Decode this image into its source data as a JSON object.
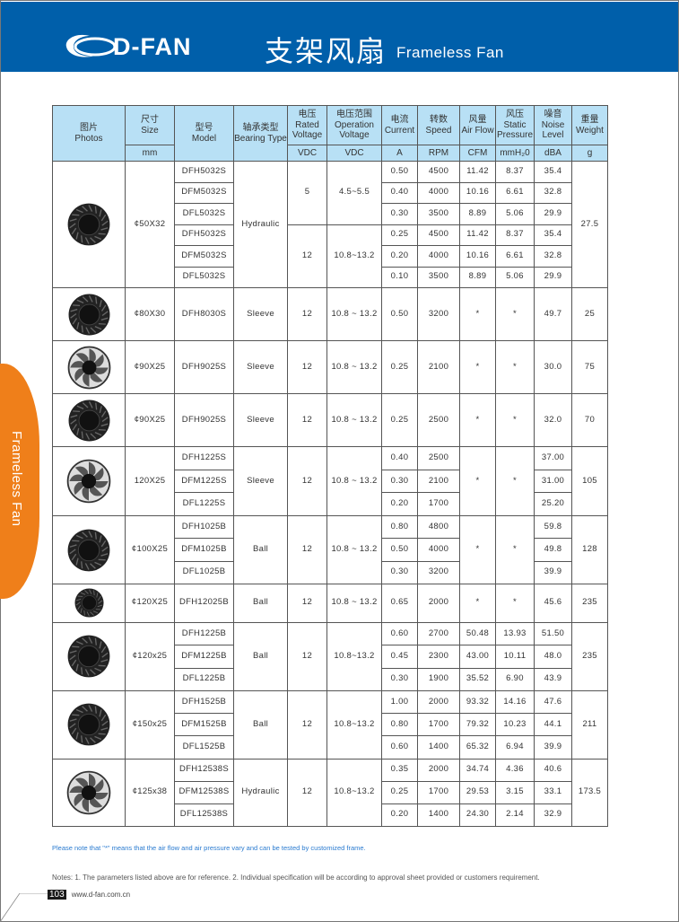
{
  "header": {
    "logo_text": "D-FAN",
    "title_cn": "支架风扇",
    "title_en": "Frameless Fan",
    "bar_color": "#005faa"
  },
  "side_tab": {
    "label": "Frameless Fan",
    "color": "#ef7f1a"
  },
  "table": {
    "headers": [
      {
        "cn": "图片",
        "en": "Photos",
        "unit": ""
      },
      {
        "cn": "尺寸",
        "en": "Size",
        "unit": "mm"
      },
      {
        "cn": "型号",
        "en": "Model",
        "unit": ""
      },
      {
        "cn": "轴承类型",
        "en": "Bearing Type",
        "unit": ""
      },
      {
        "cn": "电压",
        "en": "Rated Voltage",
        "unit": "VDC"
      },
      {
        "cn": "电压范围",
        "en": "Operation Voltage",
        "unit": "VDC"
      },
      {
        "cn": "电流",
        "en": "Current",
        "unit": "A"
      },
      {
        "cn": "转数",
        "en": "Speed",
        "unit": "RPM"
      },
      {
        "cn": "风量",
        "en": "Air Flow",
        "unit": "CFM"
      },
      {
        "cn": "风压",
        "en": "Static Pressure",
        "unit": "mmH₂0"
      },
      {
        "cn": "噪音",
        "en": "Noise Level",
        "unit": "dBA"
      },
      {
        "cn": "重量",
        "en": "Weight",
        "unit": "g"
      }
    ],
    "groups": [
      {
        "photo_icon": "blower-fan-icon",
        "size": "¢50X32",
        "bearing": "Hydraulic",
        "weight": "27.5",
        "rows": [
          {
            "model": "DFH5032S",
            "voltage": "5",
            "range": "4.5~5.5",
            "current": "0.50",
            "speed": "4500",
            "airflow": "11.42",
            "pressure": "8.37",
            "noise": "35.4"
          },
          {
            "model": "DFM5032S",
            "voltage": "5",
            "range": "4.5~5.5",
            "current": "0.40",
            "speed": "4000",
            "airflow": "10.16",
            "pressure": "6.61",
            "noise": "32.8"
          },
          {
            "model": "DFL5032S",
            "voltage": "5",
            "range": "4.5~5.5",
            "current": "0.30",
            "speed": "3500",
            "airflow": "8.89",
            "pressure": "5.06",
            "noise": "29.9"
          },
          {
            "model": "DFH5032S",
            "voltage": "12",
            "range": "10.8~13.2",
            "current": "0.25",
            "speed": "4500",
            "airflow": "11.42",
            "pressure": "8.37",
            "noise": "35.4"
          },
          {
            "model": "DFM5032S",
            "voltage": "12",
            "range": "10.8~13.2",
            "current": "0.20",
            "speed": "4000",
            "airflow": "10.16",
            "pressure": "6.61",
            "noise": "32.8"
          },
          {
            "model": "DFL5032S",
            "voltage": "12",
            "range": "10.8~13.2",
            "current": "0.10",
            "speed": "3500",
            "airflow": "8.89",
            "pressure": "5.06",
            "noise": "29.9"
          }
        ]
      },
      {
        "photo_icon": "blower-fan-icon",
        "size": "¢80X30",
        "bearing": "Sleeve",
        "weight": "25",
        "rows": [
          {
            "model": "DFH8030S",
            "voltage": "12",
            "range": "10.8 ~ 13.2",
            "current": "0.50",
            "speed": "3200",
            "airflow": "*",
            "pressure": "*",
            "noise": "49.7"
          }
        ]
      },
      {
        "photo_icon": "axial-fan-icon",
        "size": "¢90X25",
        "bearing": "Sleeve",
        "weight": "75",
        "rows": [
          {
            "model": "DFH9025S",
            "voltage": "12",
            "range": "10.8 ~ 13.2",
            "current": "0.25",
            "speed": "2100",
            "airflow": "*",
            "pressure": "*",
            "noise": "30.0"
          }
        ]
      },
      {
        "photo_icon": "blower-fan-icon",
        "size": "¢90X25",
        "bearing": "Sleeve",
        "weight": "70",
        "rows": [
          {
            "model": "DFH9025S",
            "voltage": "12",
            "range": "10.8 ~ 13.2",
            "current": "0.25",
            "speed": "2500",
            "airflow": "*",
            "pressure": "*",
            "noise": "32.0"
          }
        ]
      },
      {
        "photo_icon": "axial-fan-icon",
        "size": "120X25",
        "bearing": "Sleeve",
        "weight": "105",
        "rows": [
          {
            "model": "DFH1225S",
            "voltage": "12",
            "range": "10.8 ~ 13.2",
            "current": "0.40",
            "speed": "2500",
            "airflow": "*",
            "pressure": "*",
            "noise": "37.00"
          },
          {
            "model": "DFM1225S",
            "voltage": "12",
            "range": "10.8 ~ 13.2",
            "current": "0.30",
            "speed": "2100",
            "airflow": "*",
            "pressure": "*",
            "noise": "31.00"
          },
          {
            "model": "DFL1225S",
            "voltage": "12",
            "range": "10.8 ~ 13.2",
            "current": "0.20",
            "speed": "1700",
            "airflow": "*",
            "pressure": "*",
            "noise": "25.20"
          }
        ]
      },
      {
        "photo_icon": "blower-fan-icon",
        "size": "¢100X25",
        "bearing": "Ball",
        "weight": "128",
        "rows": [
          {
            "model": "DFH1025B",
            "voltage": "12",
            "range": "10.8 ~ 13.2",
            "current": "0.80",
            "speed": "4800",
            "airflow": "*",
            "pressure": "*",
            "noise": "59.8"
          },
          {
            "model": "DFM1025B",
            "voltage": "12",
            "range": "10.8 ~ 13.2",
            "current": "0.50",
            "speed": "4000",
            "airflow": "*",
            "pressure": "*",
            "noise": "49.8"
          },
          {
            "model": "DFL1025B",
            "voltage": "12",
            "range": "10.8 ~ 13.2",
            "current": "0.30",
            "speed": "3200",
            "airflow": "*",
            "pressure": "*",
            "noise": "39.9"
          }
        ]
      },
      {
        "photo_icon": "blower-fan-icon",
        "size": "¢120X25",
        "bearing": "Ball",
        "weight": "235",
        "rows": [
          {
            "model": "DFH12025B",
            "voltage": "12",
            "range": "10.8 ~ 13.2",
            "current": "0.65",
            "speed": "2000",
            "airflow": "*",
            "pressure": "*",
            "noise": "45.6"
          }
        ]
      },
      {
        "photo_icon": "blower-fan-icon",
        "size": "¢120x25",
        "bearing": "Ball",
        "weight": "235",
        "rows": [
          {
            "model": "DFH1225B",
            "voltage": "12",
            "range": "10.8~13.2",
            "current": "0.60",
            "speed": "2700",
            "airflow": "50.48",
            "pressure": "13.93",
            "noise": "51.50"
          },
          {
            "model": "DFM1225B",
            "voltage": "12",
            "range": "10.8~13.2",
            "current": "0.45",
            "speed": "2300",
            "airflow": "43.00",
            "pressure": "10.11",
            "noise": "48.0"
          },
          {
            "model": "DFL1225B",
            "voltage": "12",
            "range": "10.8~13.2",
            "current": "0.30",
            "speed": "1900",
            "airflow": "35.52",
            "pressure": "6.90",
            "noise": "43.9"
          }
        ]
      },
      {
        "photo_icon": "blower-fan-icon",
        "size": "¢150x25",
        "bearing": "Ball",
        "weight": "211",
        "rows": [
          {
            "model": "DFH1525B",
            "voltage": "12",
            "range": "10.8~13.2",
            "current": "1.00",
            "speed": "2000",
            "airflow": "93.32",
            "pressure": "14.16",
            "noise": "47.6"
          },
          {
            "model": "DFM1525B",
            "voltage": "12",
            "range": "10.8~13.2",
            "current": "0.80",
            "speed": "1700",
            "airflow": "79.32",
            "pressure": "10.23",
            "noise": "44.1"
          },
          {
            "model": "DFL1525B",
            "voltage": "12",
            "range": "10.8~13.2",
            "current": "0.60",
            "speed": "1400",
            "airflow": "65.32",
            "pressure": "6.94",
            "noise": "39.9"
          }
        ]
      },
      {
        "photo_icon": "axial-fan-icon",
        "size": "¢125x38",
        "bearing": "Hydraulic",
        "weight": "173.5",
        "rows": [
          {
            "model": "DFH12538S",
            "voltage": "12",
            "range": "10.8~13.2",
            "current": "0.35",
            "speed": "2000",
            "airflow": "34.74",
            "pressure": "4.36",
            "noise": "40.6"
          },
          {
            "model": "DFM12538S",
            "voltage": "12",
            "range": "10.8~13.2",
            "current": "0.25",
            "speed": "1700",
            "airflow": "29.53",
            "pressure": "3.15",
            "noise": "33.1"
          },
          {
            "model": "DFL12538S",
            "voltage": "12",
            "range": "10.8~13.2",
            "current": "0.20",
            "speed": "1400",
            "airflow": "24.30",
            "pressure": "2.14",
            "noise": "32.9"
          }
        ]
      }
    ]
  },
  "notes": {
    "asterisk_note": "Please note that  \"*\"  means that the air flow and air pressure vary and can be tested by customized frame.",
    "general": "Notes: 1. The parameters listed above are for reference.    2. Individual specification will be according to approval sheet provided or customers requirement."
  },
  "footer": {
    "page_number": "103",
    "website": "www.d-fan.com.cn"
  }
}
